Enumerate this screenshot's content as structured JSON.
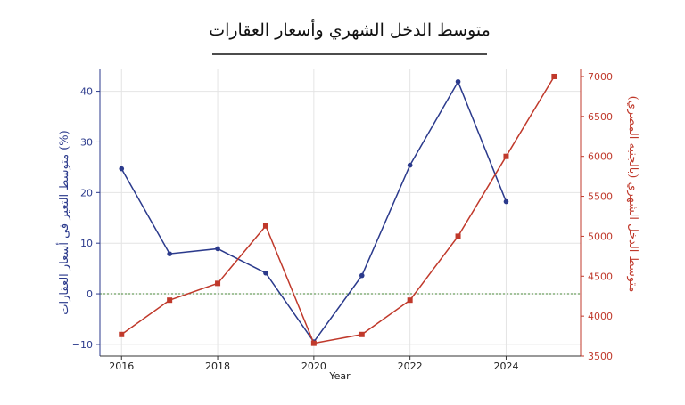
{
  "chart_data": {
    "type": "line",
    "title": "متوسط الدخل الشهري وأسعار العقارات",
    "xlabel": "Year",
    "ylabel_left": "متوسط التغير في أسعار العقارات (%)",
    "ylabel_right": "متوسط الدخل الشهري (بالجنيه المصري)",
    "xlim": [
      2015.55,
      2025.55
    ],
    "ylim_left": [
      -12.3,
      44.5
    ],
    "ylim_right": [
      3500,
      7100
    ],
    "x_ticks": [
      2016,
      2018,
      2020,
      2022,
      2024
    ],
    "y_ticks_left": [
      -10,
      0,
      10,
      20,
      30,
      40
    ],
    "y_ticks_right": [
      3500,
      4000,
      4500,
      5000,
      5500,
      6000,
      6500,
      7000
    ],
    "grid": true,
    "reference_line_left": 0,
    "series": [
      {
        "axis": "left",
        "color": "#2b3a8c",
        "marker": "circle",
        "x": [
          2016,
          2017,
          2018,
          2019,
          2020,
          2021,
          2022,
          2023,
          2024
        ],
        "values": [
          24.7,
          7.9,
          8.9,
          4.1,
          -9.5,
          3.6,
          25.4,
          41.9,
          18.2
        ]
      },
      {
        "axis": "right",
        "color": "#c0392b",
        "marker": "square",
        "x": [
          2016,
          2017,
          2018,
          2019,
          2020,
          2021,
          2022,
          2023,
          2024,
          2025
        ],
        "values": [
          3770,
          4200,
          4410,
          5130,
          3660,
          3770,
          4200,
          5000,
          6000,
          7000
        ]
      }
    ]
  }
}
